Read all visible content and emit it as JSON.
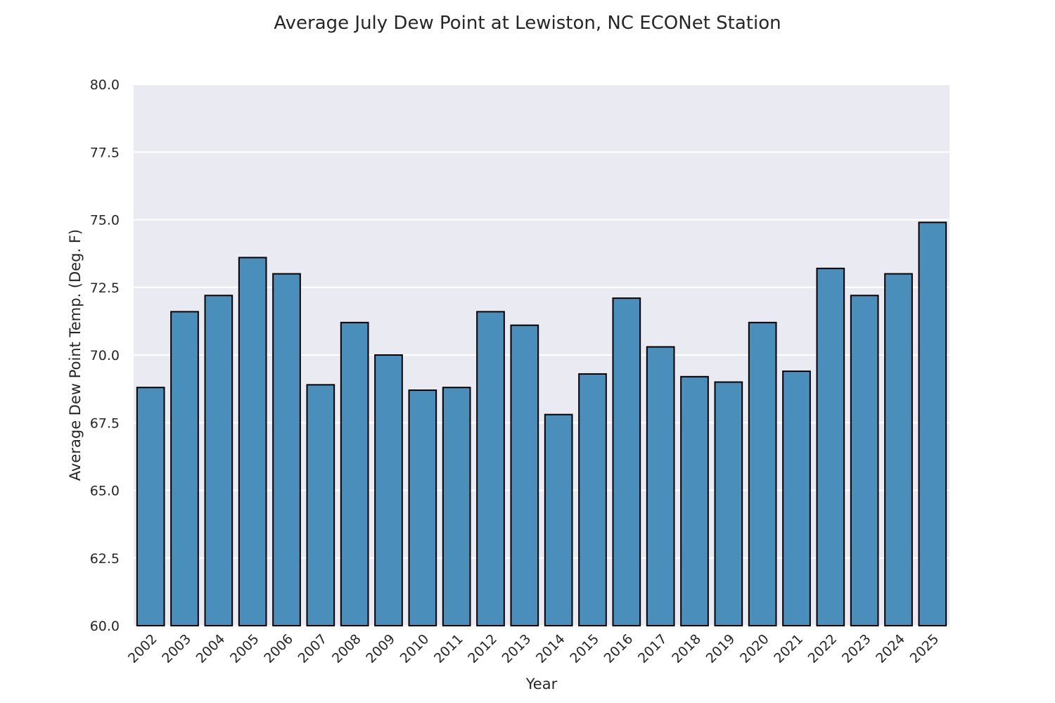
{
  "chart_data": {
    "type": "bar",
    "title": "Average July Dew Point at Lewiston, NC ECONet Station",
    "xlabel": "Year",
    "ylabel": "Average Dew Point Temp. (Deg. F)",
    "ylim": [
      60,
      80
    ],
    "yticks": [
      "60.0",
      "62.5",
      "65.0",
      "67.5",
      "70.0",
      "72.5",
      "75.0",
      "77.5",
      "80.0"
    ],
    "grid": true,
    "bar_color": "#4a8ebb",
    "edge_color": "#000000",
    "background_color": "#eaeaf2",
    "categories": [
      "2002",
      "2003",
      "2004",
      "2005",
      "2006",
      "2007",
      "2008",
      "2009",
      "2010",
      "2011",
      "2012",
      "2013",
      "2014",
      "2015",
      "2016",
      "2017",
      "2018",
      "2019",
      "2020",
      "2021",
      "2022",
      "2023",
      "2024",
      "2025"
    ],
    "values": [
      68.8,
      71.6,
      72.2,
      73.6,
      73.0,
      68.9,
      71.2,
      70.0,
      68.7,
      68.8,
      71.6,
      71.1,
      67.8,
      69.3,
      72.1,
      70.3,
      69.2,
      69.0,
      71.2,
      69.4,
      73.2,
      72.2,
      73.0,
      74.9
    ]
  }
}
